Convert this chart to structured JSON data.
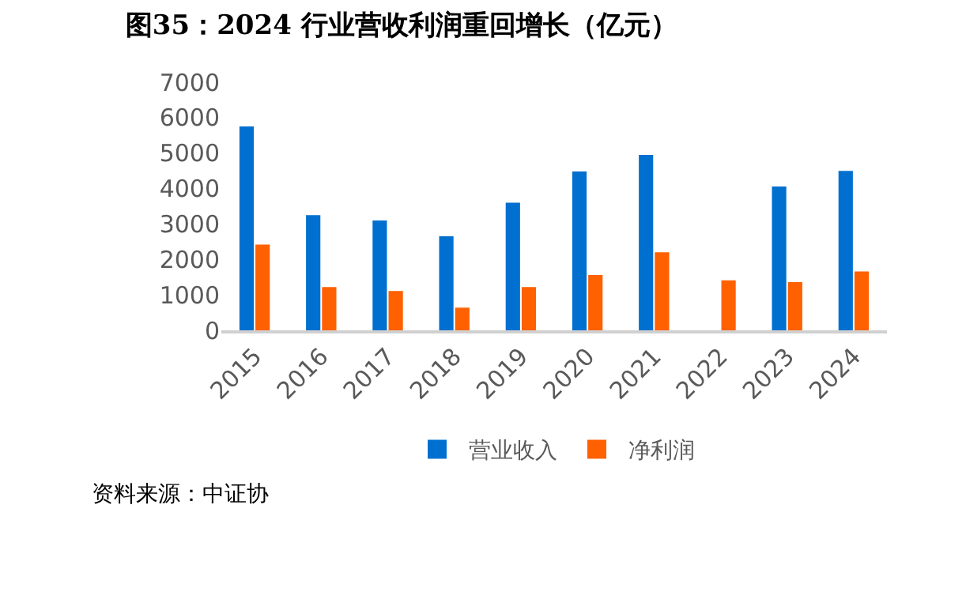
{
  "chart_data": {
    "type": "bar",
    "title": "图35：2024 行业营收利润重回增长（亿元）",
    "categories": [
      "2015",
      "2016",
      "2017",
      "2018",
      "2019",
      "2020",
      "2021",
      "2022",
      "2023",
      "2024"
    ],
    "series": [
      {
        "name": "营业收入",
        "color": "#0070d0",
        "values": [
          5750,
          3250,
          3100,
          2650,
          3600,
          4480,
          4950,
          null,
          4060,
          4500
        ]
      },
      {
        "name": "净利润",
        "color": "#ff6000",
        "values": [
          2420,
          1220,
          1110,
          640,
          1220,
          1560,
          2200,
          1410,
          1360,
          1660
        ]
      }
    ],
    "ylim": [
      0,
      7000
    ],
    "yticks": [
      0,
      1000,
      2000,
      3000,
      4000,
      5000,
      6000,
      7000
    ],
    "grid": false,
    "legend": "bottom",
    "annotations": [
      "资料来源：中证协"
    ]
  }
}
